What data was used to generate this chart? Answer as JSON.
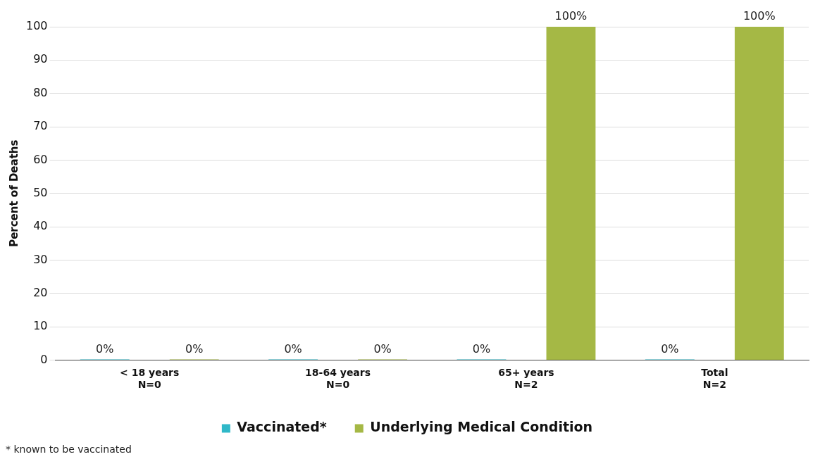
{
  "chart_data": {
    "type": "bar",
    "ylabel": "Percent of Deaths",
    "categories": [
      "< 18 years\nN=0",
      "18-64 years\nN=0",
      "65+ years\nN=2",
      "Total\nN=2"
    ],
    "series": [
      {
        "name": "Vaccinated*",
        "color": "#2fb8c8",
        "values": [
          0,
          0,
          0,
          0
        ],
        "value_labels": [
          "0%",
          "0%",
          "0%",
          "0%"
        ]
      },
      {
        "name": "Underlying Medical Condition",
        "color": "#a5b845",
        "values": [
          0,
          0,
          100,
          100
        ],
        "value_labels": [
          "0%",
          "0%",
          "100%",
          "100%"
        ]
      }
    ],
    "ylim": [
      0,
      100
    ],
    "yticks": [
      0,
      10,
      20,
      30,
      40,
      50,
      60,
      70,
      80,
      90,
      100
    ],
    "grid": "y",
    "legend": "bottom",
    "annotations": [
      "* known to be vaccinated"
    ]
  }
}
